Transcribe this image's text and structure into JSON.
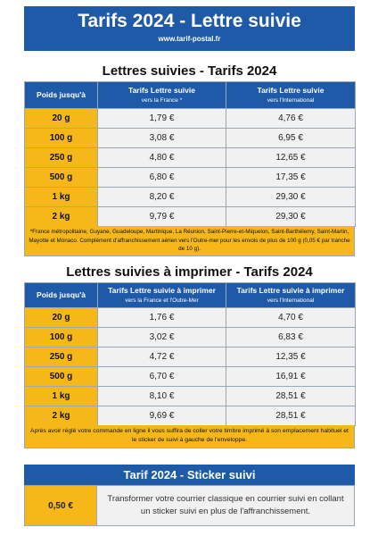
{
  "banner": {
    "title": "Tarifs 2024 - Lettre suivie",
    "url": "www.tarif-postal.fr"
  },
  "section1": {
    "title": "Lettres suivies - Tarifs 2024",
    "col_weight": "Poids jusqu'à",
    "col_france": "Tarifs Lettre suivie",
    "col_france_sub": "vers la France *",
    "col_intl": "Tarifs Lettre suivie",
    "col_intl_sub": "vers l'International",
    "rows": [
      {
        "weight": "20 g",
        "france": "1,79 €",
        "intl": "4,76 €"
      },
      {
        "weight": "100 g",
        "france": "3,08 €",
        "intl": "6,95 €"
      },
      {
        "weight": "250 g",
        "france": "4,80 €",
        "intl": "12,65 €"
      },
      {
        "weight": "500 g",
        "france": "6,80 €",
        "intl": "17,35 €"
      },
      {
        "weight": "1 kg",
        "france": "8,20 €",
        "intl": "29,30 €"
      },
      {
        "weight": "2 kg",
        "france": "9,79 €",
        "intl": "29,30 €"
      }
    ],
    "note": "*France métropolitaine, Guyane, Guadeloupe, Martinique, La Réunion, Saint-Pierre-et-Miquelon, Saint-Barthélemy, Saint-Martin, Mayotte et Monaco. Complément d'affranchissement aérien vers l'Outre-mer pour les envois de plus de 100 g (0,05 € par tranche de 10 g)."
  },
  "section2": {
    "title": "Lettres suivies à imprimer - Tarifs 2024",
    "col_weight": "Poids jusqu'à",
    "col_france": "Tarifs Lettre suivie à imprimer",
    "col_france_sub": "vers la France et l'Outre-Mer",
    "col_intl": "Tarifs Lettre suivie à imprimer",
    "col_intl_sub": "vers l'International",
    "rows": [
      {
        "weight": "20 g",
        "france": "1,76 €",
        "intl": "4,70 €"
      },
      {
        "weight": "100 g",
        "france": "3,02 €",
        "intl": "6,83 €"
      },
      {
        "weight": "250 g",
        "france": "4,72 €",
        "intl": "12,35 €"
      },
      {
        "weight": "500 g",
        "france": "6,70 €",
        "intl": "16,91 €"
      },
      {
        "weight": "1 kg",
        "france": "8,10 €",
        "intl": "28,51 €"
      },
      {
        "weight": "2 kg",
        "france": "9,69 €",
        "intl": "28,51 €"
      }
    ],
    "note": "Après avoir réglé votre commande en ligne il vous suffira de coller votre timbre imprimé à son emplacement habituel et le sticker de suivi à gauche de l'enveloppe."
  },
  "sticker": {
    "title": "Tarif 2024 - Sticker suivi",
    "price": "0,50 €",
    "description": "Transformer votre courrier classique en courrier suivi en collant un sticker suivi en plus de l'affranchissement."
  }
}
